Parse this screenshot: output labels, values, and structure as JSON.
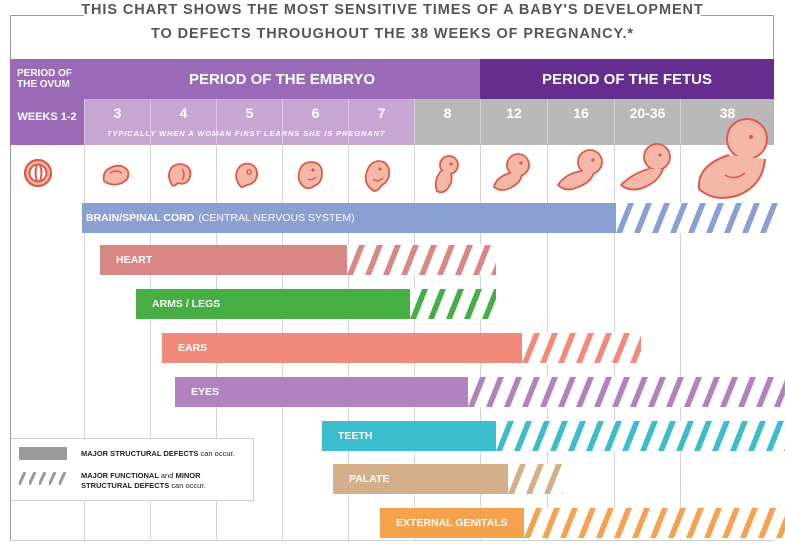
{
  "title": {
    "line1": "THIS CHART SHOWS THE MOST SENSITIVE TIMES OF A BABY'S DEVELOPMENT",
    "line2": "TO DEFECTS THROUGHOUT THE 38 WEEKS OF PREGNANCY.*"
  },
  "header": {
    "period_ovum_line1": "PERIOD OF",
    "period_ovum_line2": "THE OVUM",
    "period_embryo": "PERIOD OF THE EMBRYO",
    "period_fetus": "PERIOD OF THE FETUS"
  },
  "weeks": {
    "label": "WEEKS 1-2",
    "columns": [
      "3",
      "4",
      "5",
      "6",
      "7",
      "8",
      "12",
      "16",
      "20-36",
      "38"
    ],
    "note": "TYPICALLY WHEN A WOMAN FIRST LEARNS SHE IS PREGNANT"
  },
  "bars": [
    {
      "label": "BRAIN/SPINAL CORD",
      "sub": "(CENTRAL NERVOUS SYSTEM)",
      "color": "#8aa0d2"
    },
    {
      "label": "HEART",
      "color": "#d98784"
    },
    {
      "label": "ARMS / LEGS",
      "color": "#46ae44"
    },
    {
      "label": "EARS",
      "color": "#f28a7b"
    },
    {
      "label": "EYES",
      "color": "#b083bf"
    },
    {
      "label": "TEETH",
      "color": "#3cbdcc"
    },
    {
      "label": "PALATE",
      "color": "#d4b08a"
    },
    {
      "label": "EXTERNAL GENITALS",
      "color": "#f5a24e"
    }
  ],
  "legend": {
    "major_bold": "MAJOR STRUCTURAL DEFECTS",
    "major_rest": "can occur.",
    "functional_bold_1": "MAJOR FUNCTIONAL",
    "functional_and": "and",
    "functional_bold_2": "MINOR",
    "functional_bold_3": "STRUCTURAL DEFECTS",
    "functional_rest": "can occur."
  },
  "colors": {
    "purple_dark": "#662d91",
    "purple_mid": "#9b6ab7",
    "purple_light": "#c7a6d3",
    "grey_header": "#b8b8b8",
    "embryo_fill": "#f5b8a8",
    "embryo_stroke": "#d95b4a"
  }
}
